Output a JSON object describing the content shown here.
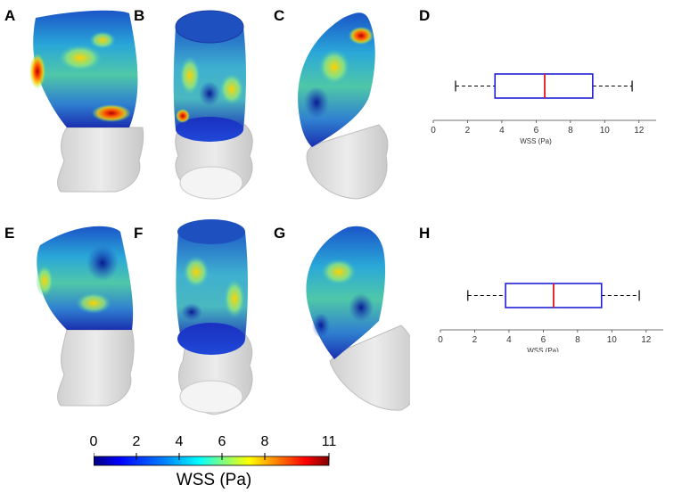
{
  "panels": {
    "A": "A",
    "B": "B",
    "C": "C",
    "D": "D",
    "E": "E",
    "F": "F",
    "G": "G",
    "H": "H"
  },
  "colorbar": {
    "ticks": [
      "0",
      "2",
      "4",
      "6",
      "8",
      "11"
    ],
    "tick_values": [
      0,
      2,
      4,
      6,
      8,
      11
    ],
    "range": [
      0,
      11
    ],
    "title": "WSS (Pa)",
    "colormap": [
      "#00007f",
      "#0000ff",
      "#007fff",
      "#00ffff",
      "#7fff7f",
      "#ffff00",
      "#ff7f00",
      "#ff0000",
      "#7f0000"
    ]
  },
  "chart_data": [
    {
      "panel": "D",
      "type": "box",
      "xlabel": "WSS (Pa)",
      "xlim": [
        0,
        13
      ],
      "xticks": [
        0,
        2,
        4,
        6,
        8,
        10,
        12
      ],
      "whisker_low": 1.3,
      "q1": 3.6,
      "median": 6.5,
      "q3": 9.3,
      "whisker_high": 11.6,
      "box_color": "#1f1fd6",
      "median_color": "#e8141c"
    },
    {
      "panel": "H",
      "type": "box",
      "xlabel": "WSS (Pa)",
      "xlim": [
        0,
        13
      ],
      "xticks": [
        0,
        2,
        4,
        6,
        8,
        10,
        12
      ],
      "whisker_low": 1.6,
      "q1": 3.8,
      "median": 6.6,
      "q3": 9.4,
      "whisker_high": 11.6,
      "box_color": "#1f1fd6",
      "median_color": "#e8141c"
    }
  ]
}
